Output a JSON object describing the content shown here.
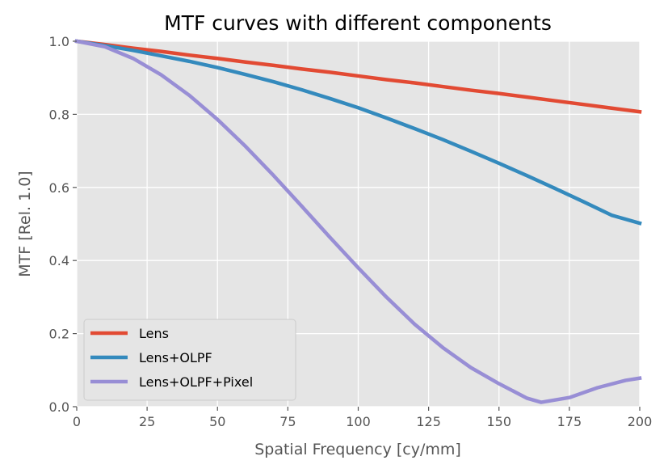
{
  "chart_data": {
    "type": "line",
    "title": "MTF curves with different components",
    "xlabel": "Spatial Frequency [cy/mm]",
    "ylabel": "MTF [Rel. 1.0]",
    "xlim": [
      0,
      200
    ],
    "ylim": [
      0.0,
      1.0
    ],
    "xticks": [
      0,
      25,
      50,
      75,
      100,
      125,
      150,
      175,
      200
    ],
    "xtick_labels": [
      "0",
      "25",
      "50",
      "75",
      "100",
      "125",
      "150",
      "175",
      "200"
    ],
    "yticks": [
      0.0,
      0.2,
      0.4,
      0.6,
      0.8,
      1.0
    ],
    "ytick_labels": [
      "0.0",
      "0.2",
      "0.4",
      "0.6",
      "0.8",
      "1.0"
    ],
    "grid": true,
    "legend_position": "lower-left",
    "background_color": "#E5E5E5",
    "series": [
      {
        "name": "Lens",
        "color": "#E24A33",
        "x": [
          0,
          10,
          20,
          30,
          40,
          50,
          60,
          70,
          80,
          90,
          100,
          110,
          120,
          130,
          140,
          150,
          160,
          170,
          180,
          190,
          200
        ],
        "y": [
          1.0,
          0.991,
          0.981,
          0.972,
          0.962,
          0.953,
          0.943,
          0.934,
          0.924,
          0.915,
          0.905,
          0.895,
          0.886,
          0.876,
          0.866,
          0.857,
          0.847,
          0.837,
          0.827,
          0.817,
          0.807
        ]
      },
      {
        "name": "Lens+OLPF",
        "color": "#348ABD",
        "x": [
          0,
          10,
          20,
          30,
          40,
          50,
          60,
          70,
          80,
          90,
          100,
          110,
          120,
          130,
          140,
          150,
          160,
          170,
          180,
          190,
          200
        ],
        "y": [
          1.0,
          0.988,
          0.975,
          0.96,
          0.945,
          0.928,
          0.909,
          0.889,
          0.867,
          0.843,
          0.818,
          0.79,
          0.761,
          0.731,
          0.699,
          0.666,
          0.632,
          0.597,
          0.561,
          0.524,
          0.502
        ]
      },
      {
        "name": "Lens+OLPF+Pixel",
        "color": "#988ED5",
        "x": [
          0,
          10,
          20,
          30,
          40,
          50,
          60,
          70,
          80,
          90,
          100,
          110,
          120,
          130,
          140,
          150,
          160,
          165,
          175,
          185,
          195,
          200
        ],
        "y": [
          1.0,
          0.985,
          0.953,
          0.908,
          0.852,
          0.786,
          0.712,
          0.632,
          0.548,
          0.463,
          0.38,
          0.3,
          0.226,
          0.162,
          0.107,
          0.063,
          0.023,
          0.012,
          0.025,
          0.052,
          0.072,
          0.078
        ]
      }
    ]
  }
}
